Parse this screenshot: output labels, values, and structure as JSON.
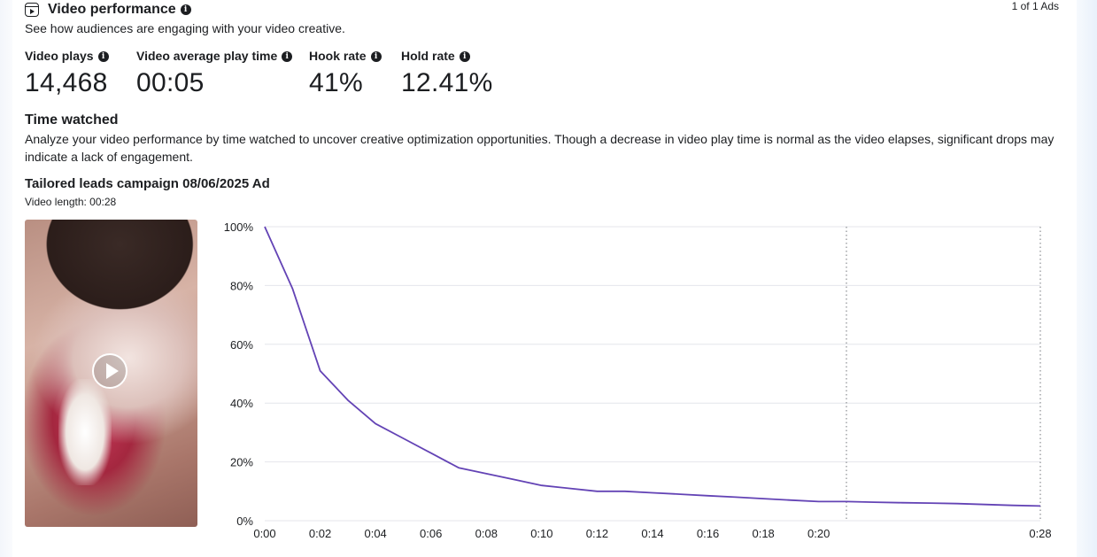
{
  "header": {
    "title": "Video performance",
    "subtitle": "See how audiences are engaging with your video creative.",
    "pager": "1 of 1 Ads"
  },
  "metrics": [
    {
      "label": "Video plays",
      "value": "14,468"
    },
    {
      "label": "Video average play time",
      "value": "00:05"
    },
    {
      "label": "Hook rate",
      "value": "41%"
    },
    {
      "label": "Hold rate",
      "value": "12.41%"
    }
  ],
  "time_watched": {
    "title": "Time watched",
    "description": "Analyze your video performance by time watched to uncover creative optimization opportunities. Though a decrease in video play time is normal as the video elapses, significant drops may indicate a lack of engagement."
  },
  "ad": {
    "name": "Tailored leads campaign 08/06/2025 Ad",
    "video_length": "Video length: 00:28"
  },
  "chart_data": {
    "type": "line",
    "title": "",
    "xlabel": "",
    "ylabel": "",
    "color": "#6343b5",
    "x": [
      0,
      1,
      2,
      3,
      4,
      5,
      6,
      7,
      8,
      9,
      10,
      11,
      12,
      13,
      14,
      15,
      16,
      17,
      18,
      19,
      20,
      21,
      22,
      23,
      24,
      25,
      26,
      27,
      28
    ],
    "values": [
      100,
      79,
      51,
      41,
      33,
      28,
      23,
      18,
      16,
      14,
      12,
      11,
      10,
      10,
      9.5,
      9,
      8.5,
      8,
      7.5,
      7,
      6.5,
      6.5,
      6.3,
      6.1,
      6,
      5.8,
      5.5,
      5.2,
      5
    ],
    "xlim": [
      0,
      28
    ],
    "ylim": [
      0,
      100
    ],
    "x_ticks": [
      0,
      2,
      4,
      6,
      8,
      10,
      12,
      14,
      16,
      18,
      20,
      28
    ],
    "x_tick_labels": [
      "0:00",
      "0:02",
      "0:04",
      "0:06",
      "0:08",
      "0:10",
      "0:12",
      "0:14",
      "0:16",
      "0:18",
      "0:20",
      "0:28"
    ],
    "y_ticks": [
      0,
      20,
      40,
      60,
      80,
      100
    ],
    "y_tick_labels": [
      "0%",
      "20%",
      "40%",
      "60%",
      "80%",
      "100%"
    ],
    "dotted_markers": [
      21,
      28
    ],
    "grid": true
  }
}
